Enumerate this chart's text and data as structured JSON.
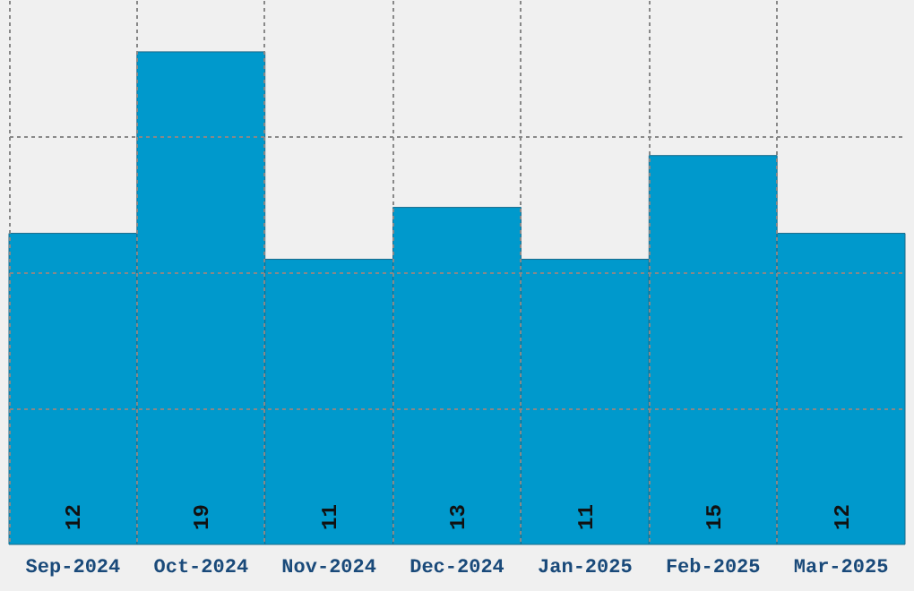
{
  "chart_data": {
    "type": "bar",
    "categories": [
      "Sep-2024",
      "Oct-2024",
      "Nov-2024",
      "Dec-2024",
      "Jan-2025",
      "Feb-2025",
      "Mar-2025"
    ],
    "values": [
      12,
      19,
      11,
      13,
      11,
      15,
      12
    ],
    "color": "#0099cc",
    "data_labels": true,
    "grid": true,
    "tick_labels": "x",
    "ylim": [
      0,
      21
    ],
    "yticks": [
      {
        "value": 5.25,
        "label": null
      },
      {
        "value": 10.5,
        "label": null
      },
      {
        "value": 15.75,
        "label": null
      }
    ]
  }
}
